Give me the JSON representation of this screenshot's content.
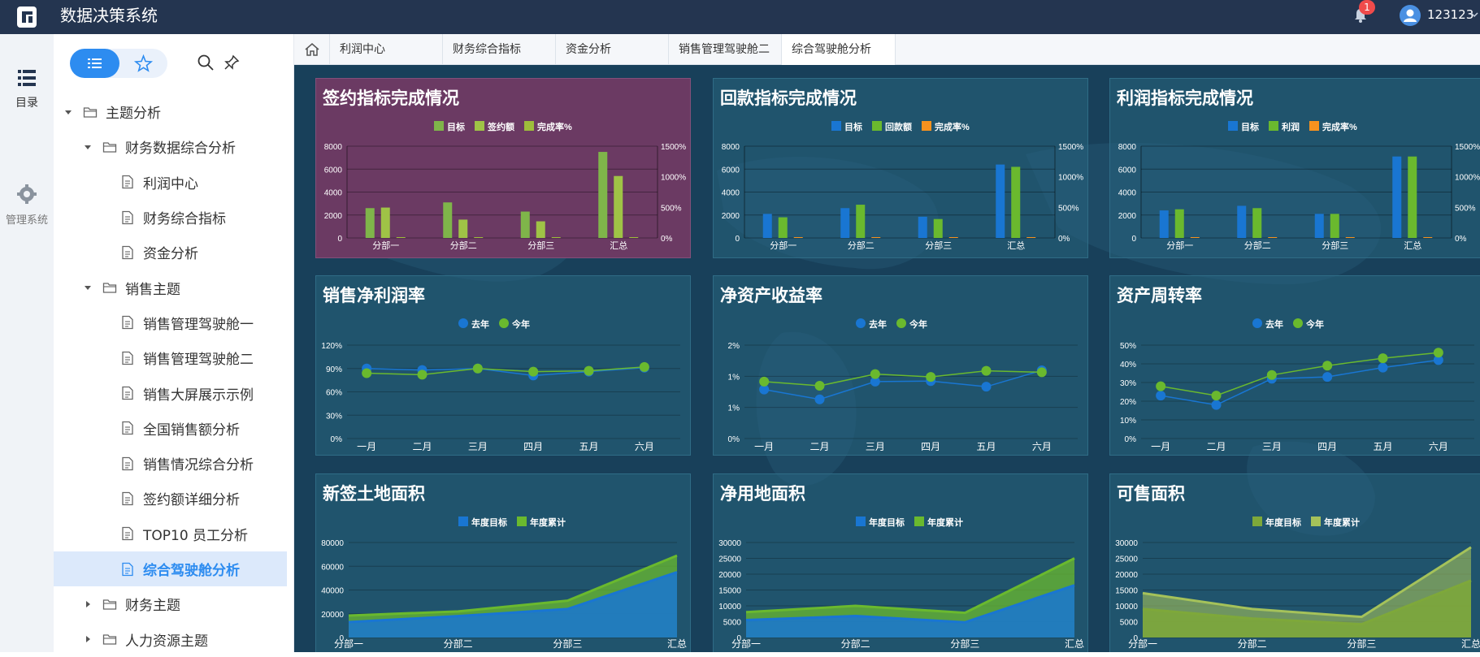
{
  "app": {
    "title": "数据决策系统",
    "notification_count": "1",
    "user": "123123"
  },
  "colors": {
    "topbar": "#243550",
    "accent": "#2d8cf0",
    "dashboard_bg": "#18405a",
    "blue": "#1976d2",
    "green": "#6ab92e",
    "olive": "#9ebd3b",
    "orange": "#f7921e",
    "bar_target": "#7fb54a",
    "bar_sign": "#9fc346",
    "area_green": "#7ea83a",
    "area_green2": "#a5c25a"
  },
  "rail": [
    {
      "label": "目录",
      "icon": "catalog-list-icon"
    },
    {
      "label": "管理系统",
      "icon": "gear-icon"
    }
  ],
  "sidebar": {
    "items": [
      {
        "label": "主题分析",
        "level": 0,
        "expanded": true,
        "type": "folder"
      },
      {
        "label": "财务数据综合分析",
        "level": 1,
        "expanded": true,
        "type": "folder"
      },
      {
        "label": "利润中心",
        "level": 2,
        "type": "doc"
      },
      {
        "label": "财务综合指标",
        "level": 2,
        "type": "doc"
      },
      {
        "label": "资金分析",
        "level": 2,
        "type": "doc"
      },
      {
        "label": "销售主题",
        "level": 1,
        "expanded": true,
        "type": "folder"
      },
      {
        "label": "销售管理驾驶舱一",
        "level": 2,
        "type": "doc"
      },
      {
        "label": "销售管理驾驶舱二",
        "level": 2,
        "type": "doc"
      },
      {
        "label": "销售大屏展示示例",
        "level": 2,
        "type": "doc"
      },
      {
        "label": "全国销售额分析",
        "level": 2,
        "type": "doc"
      },
      {
        "label": "销售情况综合分析",
        "level": 2,
        "type": "doc"
      },
      {
        "label": "签约额详细分析",
        "level": 2,
        "type": "doc"
      },
      {
        "label": "TOP10 员工分析",
        "level": 2,
        "type": "doc"
      },
      {
        "label": "综合驾驶舱分析",
        "level": 2,
        "type": "doc",
        "active": true
      },
      {
        "label": "财务主题",
        "level": 1,
        "expanded": false,
        "type": "folder"
      },
      {
        "label": "人力资源主题",
        "level": 1,
        "expanded": false,
        "type": "folder"
      }
    ]
  },
  "tabs": [
    "利润中心",
    "财务综合指标",
    "资金分析",
    "销售管理驾驶舱二",
    "综合驾驶舱分析"
  ],
  "active_tab": 4,
  "chart_data": [
    {
      "type": "bar",
      "title": "签约指标完成情况",
      "categories": [
        "分部一",
        "分部二",
        "分部三",
        "汇总"
      ],
      "series": [
        {
          "name": "目标",
          "values": [
            2600,
            3100,
            2300,
            7500
          ]
        },
        {
          "name": "签约额",
          "values": [
            2650,
            1600,
            1450,
            5400
          ]
        },
        {
          "name": "完成率%",
          "values": [
            0,
            0,
            0,
            0
          ]
        }
      ],
      "ylim": [
        0,
        8000
      ],
      "yticks": [
        "8000",
        "6000",
        "4000",
        "2000",
        "0"
      ],
      "y2ticks": [
        "1500%",
        "1000%",
        "500%",
        "0%"
      ]
    },
    {
      "type": "bar",
      "title": "回款指标完成情况",
      "categories": [
        "分部一",
        "分部二",
        "分部三",
        "汇总"
      ],
      "series": [
        {
          "name": "目标",
          "values": [
            2100,
            2600,
            1850,
            6400
          ]
        },
        {
          "name": "回款额",
          "values": [
            1800,
            2900,
            1650,
            6200
          ]
        },
        {
          "name": "完成率%",
          "values": [
            0,
            0,
            0,
            0
          ]
        }
      ],
      "ylim": [
        0,
        8000
      ],
      "yticks": [
        "8000",
        "6000",
        "4000",
        "2000",
        "0"
      ],
      "y2ticks": [
        "1500%",
        "1000%",
        "500%",
        "0%"
      ]
    },
    {
      "type": "bar",
      "title": "利润指标完成情况",
      "categories": [
        "分部一",
        "分部二",
        "分部三",
        "汇总"
      ],
      "series": [
        {
          "name": "目标",
          "values": [
            2400,
            2800,
            2100,
            7100
          ]
        },
        {
          "name": "利润",
          "values": [
            2500,
            2600,
            2100,
            7100
          ]
        },
        {
          "name": "完成率%",
          "values": [
            0,
            0,
            0,
            0
          ]
        }
      ],
      "ylim": [
        0,
        8000
      ],
      "yticks": [
        "8000",
        "6000",
        "4000",
        "2000",
        "0"
      ],
      "y2ticks": [
        "1500%",
        "1000%",
        "500%",
        "0%"
      ]
    },
    {
      "type": "line",
      "title": "销售净利润率",
      "categories": [
        "一月",
        "二月",
        "三月",
        "四月",
        "五月",
        "六月"
      ],
      "series": [
        {
          "name": "去年",
          "values": [
            90,
            88,
            90,
            81,
            86,
            91
          ]
        },
        {
          "name": "今年",
          "values": [
            84,
            82,
            90,
            86,
            87,
            92
          ]
        }
      ],
      "ylim": [
        0,
        120
      ],
      "yticks": [
        "120%",
        "90%",
        "60%",
        "30%",
        "0%"
      ]
    },
    {
      "type": "line",
      "title": "净资产收益率",
      "categories": [
        "一月",
        "二月",
        "三月",
        "四月",
        "五月",
        "六月"
      ],
      "series": [
        {
          "name": "去年",
          "values": [
            1.05,
            0.84,
            1.22,
            1.23,
            1.11,
            1.46
          ]
        },
        {
          "name": "今年",
          "values": [
            1.22,
            1.13,
            1.38,
            1.32,
            1.45,
            1.42
          ]
        }
      ],
      "ylim": [
        0,
        2
      ],
      "yticks": [
        "2%",
        "1%",
        "1%",
        "0%"
      ]
    },
    {
      "type": "line",
      "title": "资产周转率",
      "categories": [
        "一月",
        "二月",
        "三月",
        "四月",
        "五月",
        "六月"
      ],
      "series": [
        {
          "name": "去年",
          "values": [
            23,
            18,
            32,
            33,
            38,
            42
          ]
        },
        {
          "name": "今年",
          "values": [
            28,
            23,
            34,
            39,
            43,
            46
          ]
        }
      ],
      "ylim": [
        0,
        50
      ],
      "yticks": [
        "50%",
        "40%",
        "30%",
        "20%",
        "10%",
        "0%"
      ]
    },
    {
      "type": "area",
      "title": "新签土地面积",
      "categories": [
        "分部一",
        "分部二",
        "分部三",
        "汇总"
      ],
      "series": [
        {
          "name": "年度目标",
          "values": [
            13000,
            18000,
            24000,
            55000
          ]
        },
        {
          "name": "年度累计",
          "values": [
            18500,
            22000,
            31000,
            69000
          ]
        }
      ],
      "ylim": [
        0,
        80000
      ],
      "yticks": [
        "80000",
        "60000",
        "40000",
        "20000",
        "0"
      ]
    },
    {
      "type": "area",
      "title": "净用地面积",
      "categories": [
        "分部一",
        "分部二",
        "分部三",
        "汇总"
      ],
      "series": [
        {
          "name": "年度目标",
          "values": [
            5500,
            6800,
            4800,
            16500
          ]
        },
        {
          "name": "年度累计",
          "values": [
            8000,
            10000,
            7800,
            25000
          ]
        }
      ],
      "ylim": [
        0,
        30000
      ],
      "yticks": [
        "30000",
        "25000",
        "20000",
        "15000",
        "10000",
        "5000",
        "0"
      ]
    },
    {
      "type": "area",
      "title": "可售面积",
      "categories": [
        "分部一",
        "分部二",
        "分部三",
        "汇总"
      ],
      "series": [
        {
          "name": "年度目标",
          "values": [
            9000,
            6000,
            4200,
            18000
          ]
        },
        {
          "name": "年度累计",
          "values": [
            14000,
            9000,
            6500,
            28500
          ]
        }
      ],
      "ylim": [
        0,
        30000
      ],
      "yticks": [
        "30000",
        "25000",
        "20000",
        "15000",
        "10000",
        "5000",
        "0"
      ]
    }
  ]
}
